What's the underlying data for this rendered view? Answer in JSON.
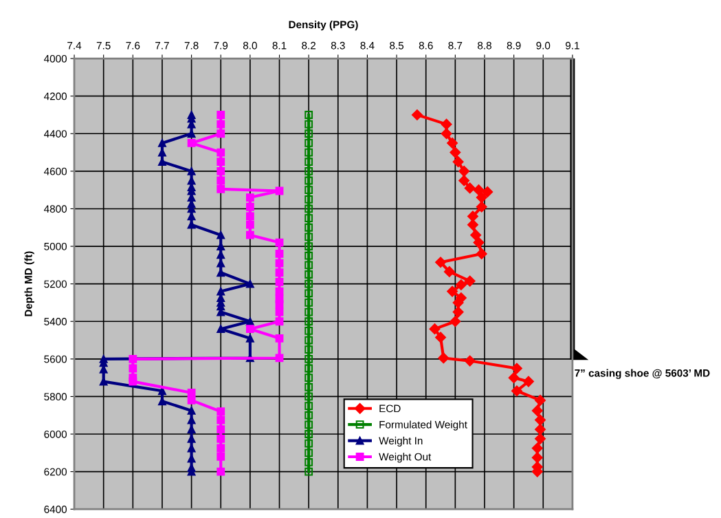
{
  "chart_data": {
    "type": "line",
    "xlabel": "Density (PPG)",
    "ylabel": "Depth MD (ft)",
    "xlim": [
      7.4,
      9.1
    ],
    "xticks": [
      7.4,
      7.5,
      7.6,
      7.7,
      7.8,
      7.9,
      {
        "value": 8,
        "label": "8.0"
      },
      8.1,
      8.2,
      8.3,
      8.4,
      8.5,
      8.6,
      8.7,
      8.8,
      8.9,
      {
        "value": 9,
        "label": "9.0"
      },
      9.1
    ],
    "ylim": [
      6400,
      4000
    ],
    "yticks": [
      4000,
      4200,
      4400,
      4600,
      4800,
      5000,
      5200,
      5400,
      5600,
      5800,
      6000,
      6200,
      6400
    ],
    "grid": true,
    "legend": "bottom right",
    "series": [
      {
        "name": "ECD",
        "color": "#ff0000",
        "marker": "diamond",
        "x": [
          8.57,
          8.67,
          8.67,
          8.69,
          8.7,
          8.71,
          8.73,
          8.73,
          8.75,
          8.78,
          8.81,
          8.79,
          8.79,
          8.76,
          8.76,
          8.77,
          8.78,
          8.79,
          8.65,
          8.68,
          8.75,
          8.72,
          8.69,
          8.72,
          8.71,
          8.71,
          8.7,
          8.63,
          8.65,
          8.66,
          8.75,
          8.91,
          8.9,
          8.95,
          8.91,
          8.99,
          8.98,
          8.99,
          8.99,
          8.99,
          8.98,
          8.98,
          8.98,
          8.98
        ],
        "values": [
          4300,
          4350,
          4400,
          4450,
          4500,
          4550,
          4600,
          4650,
          4690,
          4700,
          4710,
          4740,
          4790,
          4840,
          4885,
          4940,
          4980,
          5040,
          5085,
          5135,
          5185,
          5205,
          5240,
          5275,
          5300,
          5350,
          5400,
          5440,
          5485,
          5595,
          5610,
          5650,
          5700,
          5720,
          5770,
          5820,
          5875,
          5925,
          5975,
          6025,
          6075,
          6125,
          6175,
          6200
        ]
      },
      {
        "name": "Formulated Weight",
        "color": "#008000",
        "marker": "square_open",
        "x": [
          8.2,
          8.2,
          8.2,
          8.2,
          8.2,
          8.2,
          8.2,
          8.2,
          8.2,
          8.2,
          8.2,
          8.2,
          8.2,
          8.2,
          8.2,
          8.2,
          8.2,
          8.2,
          8.2,
          8.2,
          8.2,
          8.2,
          8.2,
          8.2,
          8.2,
          8.2,
          8.2,
          8.2,
          8.2,
          8.2,
          8.2,
          8.2,
          8.2,
          8.2,
          8.2,
          8.2,
          8.2,
          8.2,
          8.2
        ],
        "values": [
          4300,
          4350,
          4400,
          4450,
          4500,
          4550,
          4600,
          4650,
          4700,
          4750,
          4800,
          4850,
          4900,
          4950,
          5000,
          5050,
          5100,
          5150,
          5200,
          5250,
          5300,
          5350,
          5400,
          5450,
          5500,
          5550,
          5600,
          5650,
          5700,
          5750,
          5800,
          5850,
          5900,
          5950,
          6000,
          6050,
          6100,
          6150,
          6200
        ]
      },
      {
        "name": "Weight In",
        "color": "#000080",
        "marker": "triangle",
        "x": [
          7.8,
          7.8,
          7.8,
          7.8,
          7.7,
          7.7,
          7.7,
          7.8,
          7.8,
          7.8,
          7.8,
          7.8,
          7.8,
          7.8,
          7.8,
          7.8,
          7.9,
          7.9,
          7.9,
          7.9,
          7.9,
          8.0,
          7.9,
          7.9,
          7.9,
          7.9,
          7.9,
          8.0,
          7.9,
          8.0,
          8.0,
          7.5,
          7.5,
          7.5,
          7.5,
          7.7,
          7.7,
          7.8,
          7.8,
          7.8,
          7.8,
          7.8,
          7.8,
          7.8,
          7.8
        ],
        "values": [
          4300,
          4320,
          4350,
          4400,
          4450,
          4500,
          4550,
          4600,
          4650,
          4685,
          4705,
          4740,
          4775,
          4800,
          4840,
          4885,
          4940,
          5000,
          5045,
          5090,
          5140,
          5200,
          5240,
          5275,
          5300,
          5320,
          5350,
          5400,
          5440,
          5490,
          5595,
          5600,
          5620,
          5655,
          5720,
          5770,
          5825,
          5875,
          5925,
          5975,
          6025,
          6075,
          6130,
          6180,
          6200
        ]
      },
      {
        "name": "Weight Out",
        "color": "#ff00ff",
        "marker": "square",
        "x": [
          7.9,
          7.9,
          7.9,
          7.8,
          7.9,
          7.9,
          7.9,
          7.9,
          7.9,
          8.1,
          8.0,
          8.0,
          8.0,
          8.0,
          8.0,
          8.1,
          8.1,
          8.1,
          8.1,
          8.1,
          8.1,
          8.1,
          8.1,
          8.1,
          8.1,
          8.0,
          8.1,
          8.1,
          7.6,
          7.6,
          7.6,
          7.6,
          7.8,
          7.8,
          7.9,
          7.9,
          7.9,
          7.9,
          7.9,
          7.9,
          7.9
        ],
        "values": [
          4300,
          4350,
          4400,
          4450,
          4500,
          4550,
          4600,
          4650,
          4695,
          4705,
          4740,
          4790,
          4840,
          4885,
          4940,
          4980,
          5040,
          5090,
          5140,
          5190,
          5240,
          5280,
          5310,
          5350,
          5400,
          5440,
          5490,
          5595,
          5600,
          5650,
          5700,
          5720,
          5780,
          5820,
          5880,
          5925,
          5975,
          6025,
          6075,
          6120,
          6200
        ]
      }
    ],
    "ref_lines": [
      {
        "axis": "y",
        "value": 5603,
        "label": "7” casing shoe @ 5603’ MD",
        "color": "#000000"
      }
    ]
  }
}
